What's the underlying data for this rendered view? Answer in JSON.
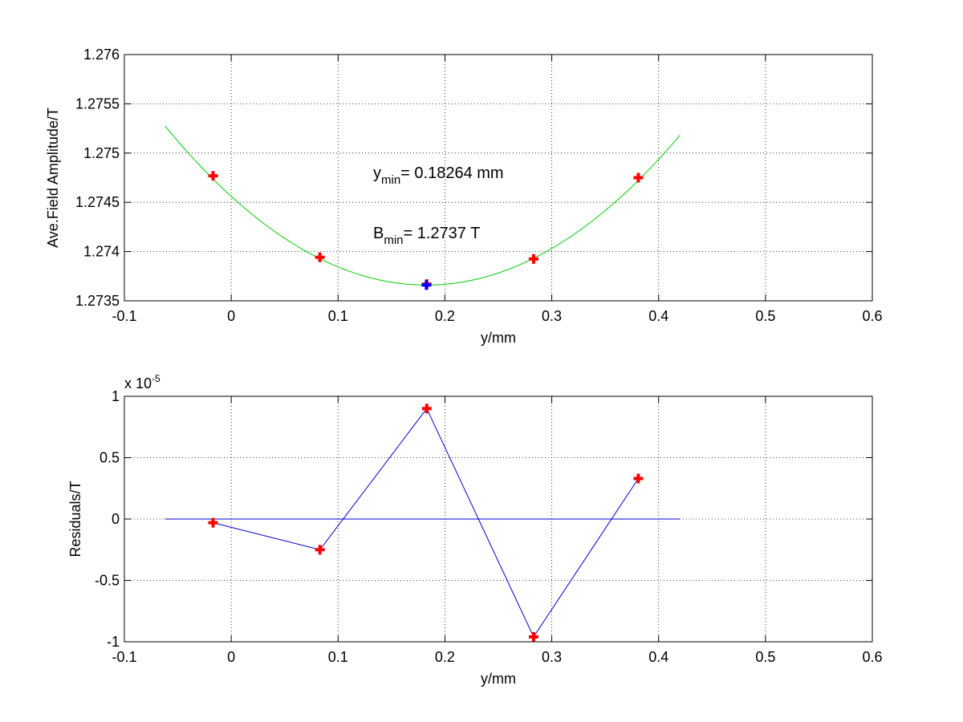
{
  "chart_data": [
    {
      "type": "scatter",
      "title": "",
      "xlabel": "y/mm",
      "ylabel": "Ave.Field Amplitude/T",
      "xlim": [
        -0.1,
        0.6
      ],
      "ylim": [
        1.2735,
        1.276
      ],
      "xticks": [
        -0.1,
        0,
        0.1,
        0.2,
        0.3,
        0.4,
        0.5,
        0.6
      ],
      "xtick_labels": [
        "-0.1",
        "0",
        "0.1",
        "0.2",
        "0.3",
        "0.4",
        "0.5",
        "0.6"
      ],
      "yticks": [
        1.2735,
        1.274,
        1.2745,
        1.275,
        1.2755,
        1.276
      ],
      "ytick_labels": [
        "1.2735",
        "1.274",
        "1.2745",
        "1.275",
        "1.2755",
        "1.276"
      ],
      "grid": true,
      "series": [
        {
          "kind": "points",
          "color": "#ff0000",
          "marker": "plus",
          "x": [
            -0.017,
            0.083,
            0.183,
            0.283,
            0.381
          ],
          "y": [
            1.274769,
            1.273942,
            1.27367,
            1.273925,
            1.27475
          ]
        },
        {
          "kind": "fit-curve",
          "color": "#00cc00",
          "x_range": [
            -0.062,
            0.42
          ],
          "vertex_x": 0.18264,
          "vertex_y": 1.27366,
          "curvature": 0.027
        },
        {
          "kind": "minimum-point",
          "color": "#0000ff",
          "marker": "plus",
          "x": [
            0.18264
          ],
          "y": [
            1.27366
          ]
        }
      ],
      "annotations": [
        {
          "main": "y",
          "sub": "min",
          "text": "= 0.18264 mm"
        },
        {
          "main": "B",
          "sub": "min",
          "text": "= 1.2737 T"
        }
      ]
    },
    {
      "type": "line",
      "title": "",
      "xlabel": "y/mm",
      "ylabel": "Residuals/T",
      "exponent_label": {
        "base": "x 10",
        "power": "-5"
      },
      "xlim": [
        -0.1,
        0.6
      ],
      "ylim": [
        -1,
        1
      ],
      "xticks": [
        -0.1,
        0,
        0.1,
        0.2,
        0.3,
        0.4,
        0.5,
        0.6
      ],
      "xtick_labels": [
        "-0.1",
        "0",
        "0.1",
        "0.2",
        "0.3",
        "0.4",
        "0.5",
        "0.6"
      ],
      "yticks": [
        -1,
        -0.5,
        0,
        0.5,
        1
      ],
      "ytick_labels": [
        "-1",
        "-0.5",
        "0",
        "0.5",
        "1"
      ],
      "grid": true,
      "series": [
        {
          "kind": "line-with-points",
          "line_color": "#0000cc",
          "marker_color": "#ff0000",
          "x": [
            -0.017,
            0.083,
            0.183,
            0.283,
            0.381
          ],
          "y": [
            -0.03,
            -0.25,
            0.9,
            -0.96,
            0.33
          ]
        },
        {
          "kind": "zero-line",
          "color": "#0000cc",
          "x_range": [
            -0.062,
            0.42
          ],
          "y": 0
        }
      ]
    }
  ]
}
